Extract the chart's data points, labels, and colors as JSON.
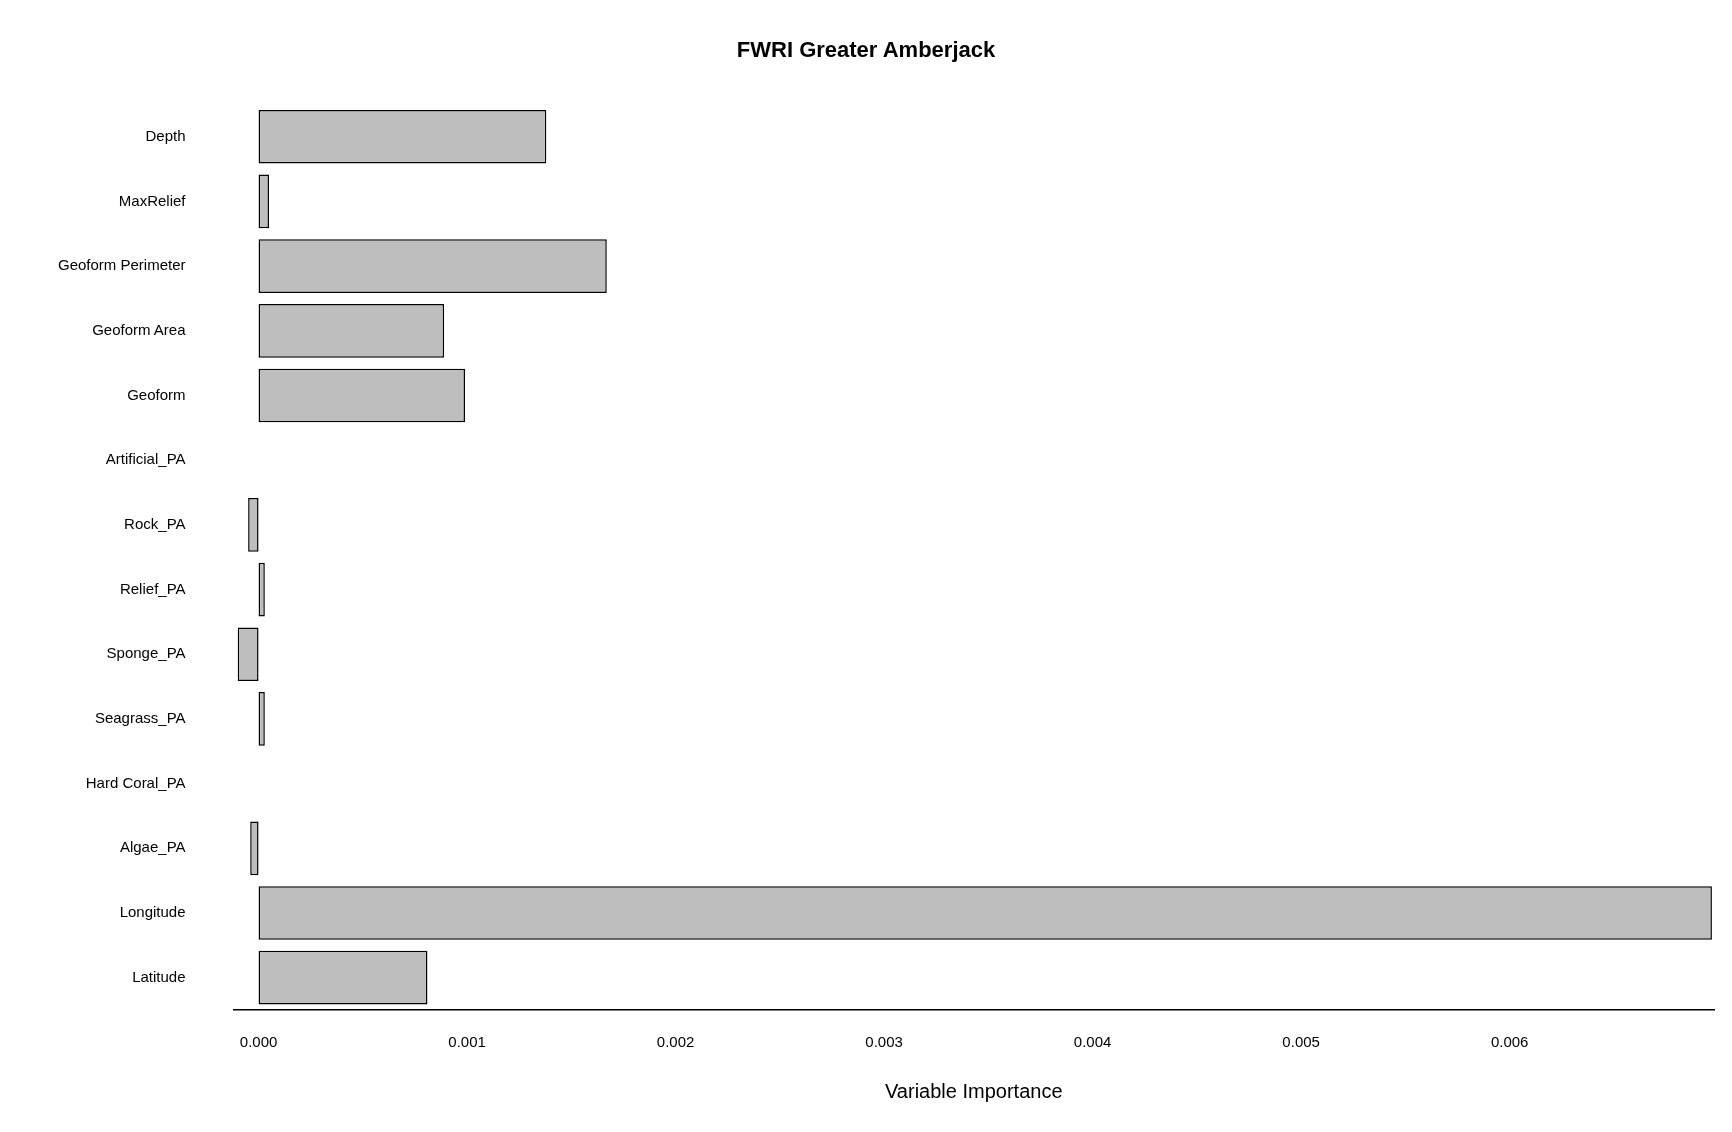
{
  "chart_data": {
    "type": "bar",
    "orientation": "horizontal",
    "title": "FWRI Greater Amberjack",
    "xlabel": "Variable Importance",
    "categories": [
      "Depth",
      "MaxRelief",
      "Geoform Perimeter",
      "Geoform Area",
      "Geoform",
      "Artificial_PA",
      "Rock_PA",
      "Relief_PA",
      "Sponge_PA",
      "Seagrass_PA",
      "Hard Coral_PA",
      "Algae_PA",
      "Longitude",
      "Latitude"
    ],
    "values": [
      0.00138,
      5e-05,
      0.00167,
      0.00089,
      0.00099,
      0,
      -5e-05,
      3e-05,
      -0.0001,
      3e-05,
      0,
      -4e-05,
      0.00697,
      0.00081
    ],
    "color": "#bebebe",
    "xlim": [
      -0.00012,
      0.00698
    ],
    "xticks": [
      {
        "value": 0,
        "label": "0.000"
      },
      {
        "value": 0.001,
        "label": "0.001"
      },
      {
        "value": 0.002,
        "label": "0.002"
      },
      {
        "value": 0.003,
        "label": "0.003"
      },
      {
        "value": 0.004,
        "label": "0.004"
      },
      {
        "value": 0.005,
        "label": "0.005"
      },
      {
        "value": 0.006,
        "label": "0.006"
      }
    ],
    "grid": false,
    "legend": false
  }
}
